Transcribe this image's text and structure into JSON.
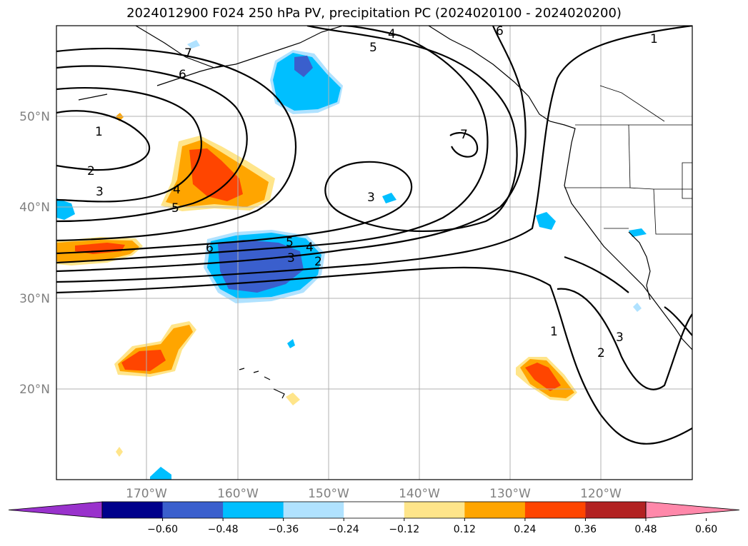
{
  "title": "2024012900 F024 250 hPa PV, precipitation PC (2024020100 - 2024020200)",
  "longitude_labels": [
    "170°W",
    "160°W",
    "150°W",
    "140°W",
    "130°W",
    "120°W"
  ],
  "latitude_labels": [
    "50°N",
    "40°N",
    "30°N",
    "20°N"
  ],
  "colorbar": {
    "labels": [
      "−0.60",
      "−0.48",
      "−0.36",
      "−0.24",
      "−0.12",
      "0.12",
      "0.24",
      "0.36",
      "0.48",
      "0.60"
    ],
    "colors": [
      "#9932cc",
      "#00008b",
      "#3a5fcd",
      "#00bfff",
      "#b0e2ff",
      "#ffffff",
      "#ffe58a",
      "#ffa500",
      "#ff4500",
      "#b22222",
      "#ff88aa"
    ]
  },
  "contour_labels": [
    "7",
    "6",
    "1",
    "2",
    "3",
    "4",
    "5",
    "6",
    "5",
    "4",
    "3",
    "2",
    "3",
    "7",
    "4",
    "5",
    "6",
    "1",
    "1",
    "2",
    "3"
  ]
}
